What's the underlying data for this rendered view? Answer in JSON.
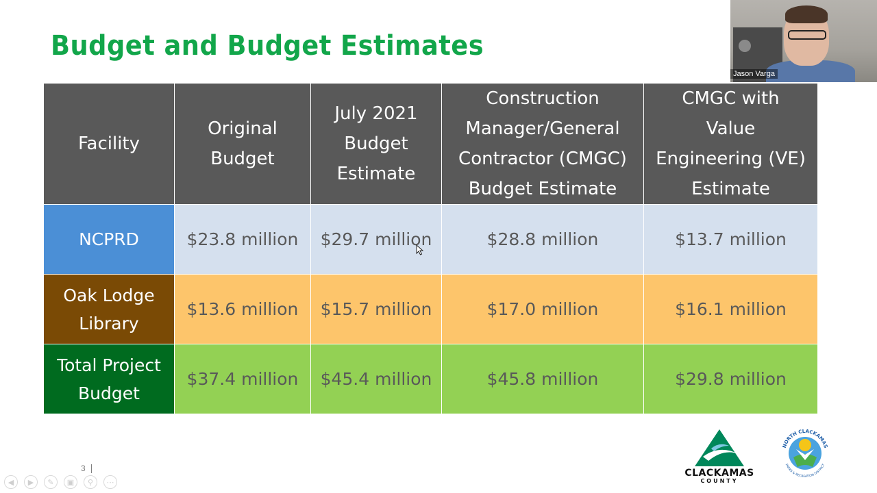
{
  "title": "Budget and Budget Estimates",
  "table": {
    "headers": [
      [
        "Facility"
      ],
      [
        "Original",
        "Budget"
      ],
      [
        "July 2021",
        "Budget",
        "Estimate"
      ],
      [
        "Construction",
        "Manager/General",
        "Contractor (CMGC)",
        "Budget Estimate"
      ],
      [
        "CMGC with",
        "Value",
        "Engineering (VE)",
        "Estimate"
      ]
    ],
    "rows": [
      {
        "facility": [
          "NCPRD"
        ],
        "values": [
          "$23.8 million",
          "$29.7 million",
          "$28.8 million",
          "$13.7 million"
        ]
      },
      {
        "facility": [
          "Oak Lodge",
          "Library"
        ],
        "values": [
          "$13.6 million",
          "$15.7 million",
          "$17.0 million",
          "$16.1 million"
        ]
      },
      {
        "facility": [
          "Total Project",
          "Budget"
        ],
        "values": [
          "$37.4 million",
          "$45.4 million",
          "$45.8 million",
          "$29.8 million"
        ]
      }
    ]
  },
  "video": {
    "participant_name": "Jason Varga"
  },
  "footer": {
    "page_number": "3"
  },
  "logos": {
    "clackamas": {
      "name": "CLACKAMAS",
      "sub": "COUNTY"
    },
    "ncprd": {
      "name": "NORTH CLACKAMAS",
      "sub": "PARKS & RECREATION DISTRICT"
    }
  },
  "toolbar_icons": [
    "prev-icon",
    "next-icon",
    "pen-icon",
    "slides-icon",
    "zoom-icon",
    "more-icon"
  ],
  "colors": {
    "title": "#12a64a",
    "header": "#595959",
    "ncprd_head": "#4b8fd6",
    "ncprd_row": "#d5e0ee",
    "oak_head": "#7a4a05",
    "oak_row": "#fdc56b",
    "total_head": "#006b1f",
    "total_row": "#93d154"
  }
}
